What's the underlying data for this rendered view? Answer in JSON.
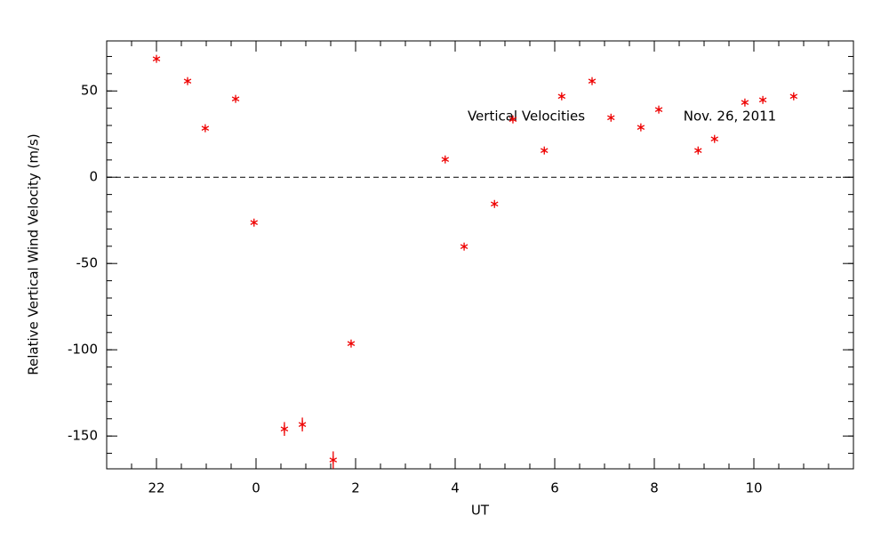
{
  "chart_data": {
    "type": "scatter",
    "xlabel": "UT",
    "ylabel": "Relative Vertical Wind Velocity (m/s)",
    "annotations": [
      "Vertical Velocities",
      "Nov. 26, 2011"
    ],
    "series": [
      {
        "color": "#ee0000",
        "x": [
          -2.0,
          -1.375,
          -1.02,
          -0.41,
          -0.04,
          0.57,
          0.93,
          1.55,
          1.91,
          3.8,
          4.18,
          4.79,
          5.16,
          5.79,
          6.14,
          6.75,
          7.13,
          7.73,
          8.09,
          8.88,
          9.21,
          9.82,
          10.18,
          10.8
        ],
        "values": [
          68.6,
          55.7,
          28.4,
          45.4,
          -26.3,
          -145.9,
          -143.3,
          -163.9,
          -96.4,
          10.3,
          -40.2,
          -15.5,
          33.5,
          15.5,
          46.9,
          55.7,
          34.5,
          28.9,
          39.2,
          15.5,
          22.2,
          43.3,
          44.8,
          46.9
        ],
        "errors": [
          1,
          1,
          1,
          1,
          1,
          4,
          4,
          5,
          1,
          1,
          1,
          1,
          1,
          1,
          1,
          1,
          1,
          1,
          1,
          1,
          1,
          1,
          1,
          1
        ]
      }
    ],
    "reference_line": 0,
    "xlim": [
      -3,
      12
    ],
    "xticks": [
      {
        "value": -2,
        "label": "22"
      },
      0,
      2,
      4,
      6,
      8,
      10
    ],
    "ylim": [
      -169,
      79
    ],
    "yticks": [
      -150,
      -100,
      -50,
      0,
      50
    ]
  }
}
